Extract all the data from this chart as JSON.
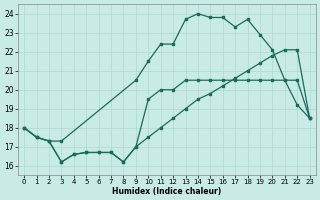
{
  "xlabel": "Humidex (Indice chaleur)",
  "xlim": [
    -0.5,
    23.5
  ],
  "ylim": [
    15.5,
    24.5
  ],
  "xticks": [
    0,
    1,
    2,
    3,
    4,
    5,
    6,
    7,
    8,
    9,
    10,
    11,
    12,
    13,
    14,
    15,
    16,
    17,
    18,
    19,
    20,
    21,
    22,
    23
  ],
  "yticks": [
    16,
    17,
    18,
    19,
    20,
    21,
    22,
    23,
    24
  ],
  "bg_color": "#c8ebe5",
  "line_color": "#1a6b5a",
  "grid_color": "#b0d8d0",
  "line1_x": [
    0,
    1,
    2,
    3,
    9,
    10,
    11,
    12,
    13,
    14,
    15,
    16,
    17,
    18,
    19,
    20,
    21,
    22,
    23
  ],
  "line1_y": [
    18.0,
    17.5,
    17.3,
    17.3,
    20.5,
    21.5,
    22.4,
    22.4,
    23.7,
    24.0,
    23.8,
    23.8,
    23.3,
    23.7,
    22.9,
    22.1,
    20.5,
    19.2,
    18.5
  ],
  "line2_x": [
    0,
    1,
    2,
    3,
    4,
    5,
    6,
    7,
    8,
    9,
    10,
    11,
    12,
    13,
    14,
    15,
    16,
    17,
    18,
    19,
    20,
    21,
    22,
    23
  ],
  "line2_y": [
    18.0,
    17.5,
    17.3,
    16.2,
    16.6,
    16.7,
    16.7,
    16.7,
    16.2,
    17.0,
    17.5,
    18.0,
    18.5,
    19.0,
    19.5,
    19.8,
    20.2,
    20.6,
    21.0,
    21.4,
    21.8,
    22.1,
    22.1,
    18.5
  ],
  "line3_x": [
    0,
    1,
    2,
    3,
    4,
    5,
    6,
    7,
    8,
    9,
    10,
    11,
    12,
    13,
    14,
    15,
    16,
    17,
    18,
    19,
    20,
    21,
    22,
    23
  ],
  "line3_y": [
    18.0,
    17.5,
    17.3,
    16.2,
    16.6,
    16.7,
    16.7,
    16.7,
    16.2,
    17.0,
    19.5,
    20.0,
    20.0,
    20.5,
    20.5,
    20.5,
    20.5,
    20.5,
    20.5,
    20.5,
    20.5,
    20.5,
    20.5,
    18.5
  ]
}
